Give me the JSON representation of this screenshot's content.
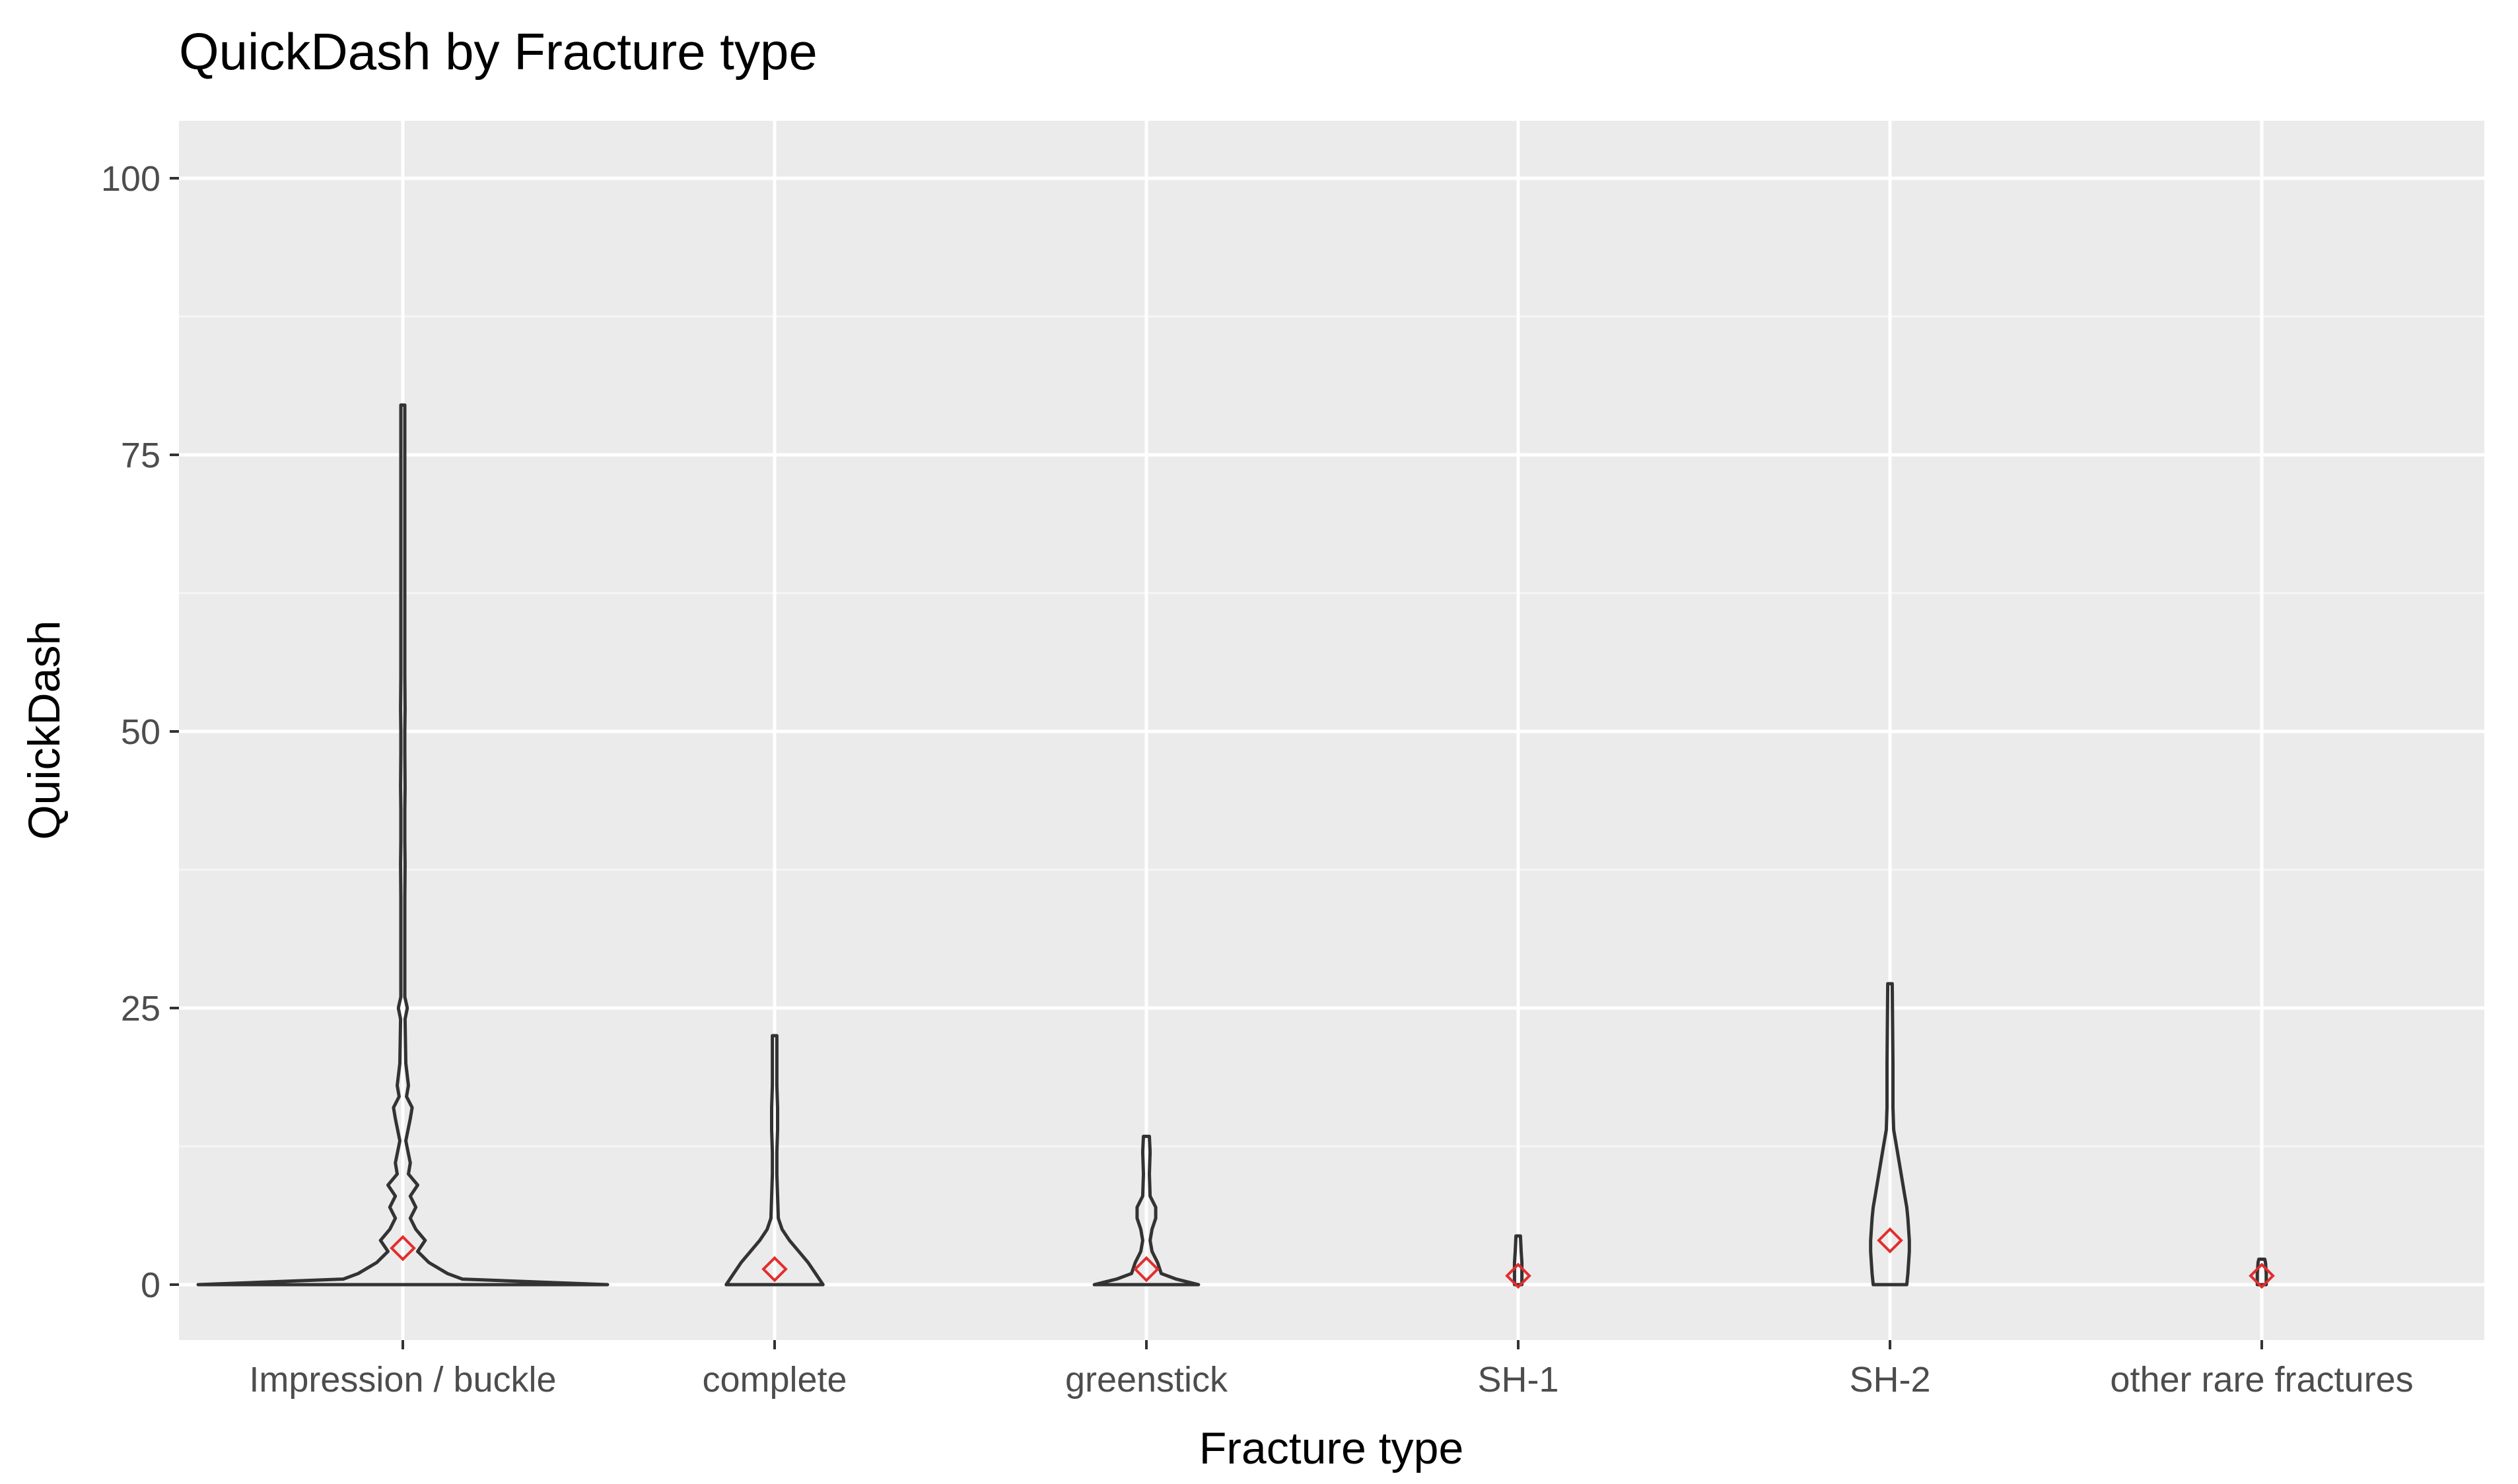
{
  "chart_data": {
    "type": "violin",
    "title": "QuickDash by Fracture type",
    "xlabel": "Fracture type",
    "ylabel": "QuickDash",
    "categories": [
      "Impression / buckle",
      "complete",
      "greenstick",
      "SH-1",
      "SH-2",
      "other rare fractures"
    ],
    "yticks": [
      0,
      25,
      50,
      75,
      100
    ],
    "ytick_labels": [
      "0",
      "25",
      "50",
      "75",
      "100"
    ],
    "ylim": [
      -5,
      105
    ],
    "grid": true,
    "mean_marker": "diamond",
    "series": [
      {
        "category": "Impression / buckle",
        "mean": 3.3,
        "density": [
          [
            0,
            0.55
          ],
          [
            0.5,
            0.16
          ],
          [
            1,
            0.12
          ],
          [
            2,
            0.07
          ],
          [
            3,
            0.04
          ],
          [
            4,
            0.06
          ],
          [
            5,
            0.035
          ],
          [
            6,
            0.02
          ],
          [
            7,
            0.035
          ],
          [
            8,
            0.02
          ],
          [
            9,
            0.04
          ],
          [
            10,
            0.015
          ],
          [
            11,
            0.02
          ],
          [
            13,
            0.008
          ],
          [
            15,
            0.02
          ],
          [
            16,
            0.025
          ],
          [
            17,
            0.01
          ],
          [
            18,
            0.015
          ],
          [
            20,
            0.008
          ],
          [
            24,
            0.006
          ],
          [
            25,
            0.012
          ],
          [
            26,
            0.005
          ],
          [
            30,
            0.004
          ],
          [
            35,
            0.003
          ],
          [
            38,
            0.006
          ],
          [
            40,
            0.003
          ],
          [
            43,
            0.005
          ],
          [
            45,
            0.006
          ],
          [
            48,
            0.003
          ],
          [
            50,
            0.003
          ],
          [
            52,
            0.006
          ],
          [
            55,
            0.003
          ],
          [
            60,
            0.003
          ],
          [
            65,
            0.003
          ],
          [
            70,
            0.003
          ],
          [
            75,
            0.003
          ],
          [
            79.5,
            0.003
          ]
        ]
      },
      {
        "category": "complete",
        "mean": 1.4,
        "density": [
          [
            0,
            0.13
          ],
          [
            1,
            0.11
          ],
          [
            2,
            0.09
          ],
          [
            3,
            0.065
          ],
          [
            4,
            0.04
          ],
          [
            5,
            0.02
          ],
          [
            6,
            0.01
          ],
          [
            8,
            0.008
          ],
          [
            10,
            0.006
          ],
          [
            12,
            0.006
          ],
          [
            14,
            0.008
          ],
          [
            16,
            0.008
          ],
          [
            18,
            0.006
          ],
          [
            20,
            0.006
          ],
          [
            22.5,
            0.006
          ]
        ]
      },
      {
        "category": "greenstick",
        "mean": 1.4,
        "density": [
          [
            0,
            0.14
          ],
          [
            0.5,
            0.08
          ],
          [
            1,
            0.04
          ],
          [
            2,
            0.03
          ],
          [
            3,
            0.015
          ],
          [
            4,
            0.01
          ],
          [
            5,
            0.015
          ],
          [
            6,
            0.025
          ],
          [
            7,
            0.025
          ],
          [
            8,
            0.01
          ],
          [
            10,
            0.008
          ],
          [
            12,
            0.01
          ],
          [
            13.4,
            0.008
          ]
        ]
      },
      {
        "category": "SH-1",
        "mean": 0.8,
        "density": [
          [
            0,
            0.01
          ],
          [
            1,
            0.01
          ],
          [
            2,
            0.01
          ],
          [
            3,
            0.008
          ],
          [
            4.4,
            0.006
          ]
        ]
      },
      {
        "category": "SH-2",
        "mean": 4.0,
        "density": [
          [
            0,
            0.045
          ],
          [
            1,
            0.048
          ],
          [
            2,
            0.05
          ],
          [
            3,
            0.052
          ],
          [
            4,
            0.052
          ],
          [
            5,
            0.05
          ],
          [
            6,
            0.048
          ],
          [
            7,
            0.045
          ],
          [
            8,
            0.04
          ],
          [
            9,
            0.035
          ],
          [
            10,
            0.03
          ],
          [
            11,
            0.025
          ],
          [
            12,
            0.02
          ],
          [
            14,
            0.01
          ],
          [
            16,
            0.008
          ],
          [
            20,
            0.008
          ],
          [
            24,
            0.007
          ],
          [
            27.2,
            0.006
          ]
        ]
      },
      {
        "category": "other rare fractures",
        "mean": 0.8,
        "density": [
          [
            0,
            0.012
          ],
          [
            1,
            0.012
          ],
          [
            2,
            0.01
          ],
          [
            2.3,
            0.008
          ]
        ]
      }
    ],
    "colors": {
      "panel_background": "#EBEBEB",
      "grid_major": "#FFFFFF",
      "grid_minor": "#F5F5F5",
      "violin_outline": "#333333",
      "mean_marker": "#E32D2D",
      "tick_mark": "#333333",
      "tick_label": "#4D4D4D",
      "title_text": "#000000"
    }
  }
}
